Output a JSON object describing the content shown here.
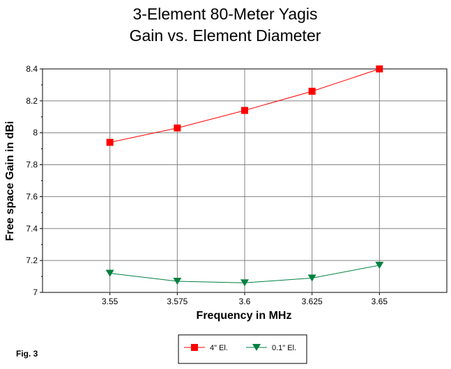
{
  "chart_data": {
    "type": "line",
    "title": [
      "3-Element 80-Meter Yagis",
      "Gain vs. Element Diameter"
    ],
    "xlabel": "Frequency in MHz",
    "ylabel": "Free space Gain in dBi",
    "x": [
      3.55,
      3.575,
      3.6,
      3.625,
      3.65
    ],
    "x_tick_labels": [
      "3.55",
      "3.575",
      "3.6",
      "3.625",
      "3.65"
    ],
    "xlim": [
      3.525,
      3.675
    ],
    "ylim": [
      7,
      8.4
    ],
    "y_ticks": [
      7,
      7.2,
      7.4,
      7.6,
      7.8,
      8,
      8.2,
      8.4
    ],
    "y_tick_labels": [
      "7",
      "7.2",
      "7.4",
      "7.6",
      "7.8",
      "8",
      "8.2",
      "8.4"
    ],
    "grid": true,
    "legend_position": "bottom-center",
    "series": [
      {
        "name": "4\" El.",
        "values": [
          7.94,
          8.03,
          8.14,
          8.26,
          8.4
        ],
        "color": "#ff0000",
        "marker": "square"
      },
      {
        "name": "0.1\" El.",
        "values": [
          7.12,
          7.07,
          7.06,
          7.09,
          7.17
        ],
        "color": "#008040",
        "marker": "triangle-down"
      }
    ],
    "annotation": "Fig. 3"
  }
}
